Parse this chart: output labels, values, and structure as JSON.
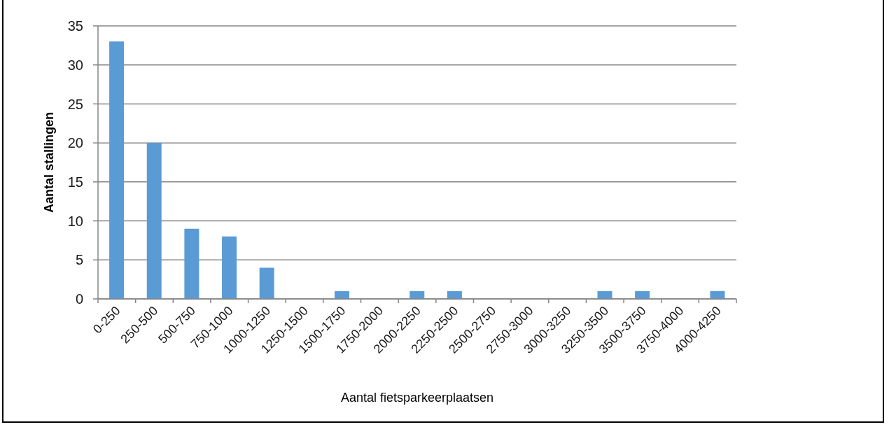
{
  "chart_data": {
    "type": "bar",
    "xlabel": "Aantal fietsparkeerplaatsen",
    "ylabel": "Aantal stallingen",
    "categories": [
      "0-250",
      "250-500",
      "500-750",
      "750-1000",
      "1000-1250",
      "1250-1500",
      "1500-1750",
      "1750-2000",
      "2000-2250",
      "2250-2500",
      "2500-2750",
      "2750-3000",
      "3000-3250",
      "3250-3500",
      "3500-3750",
      "3750-4000",
      "4000-4250"
    ],
    "values": [
      33,
      20,
      9,
      8,
      4,
      0,
      1,
      0,
      1,
      1,
      0,
      0,
      0,
      1,
      1,
      0,
      1
    ],
    "color": "#5b9bd5",
    "ylim": [
      0,
      35
    ],
    "yticks": [
      0,
      5,
      10,
      15,
      20,
      25,
      30,
      35
    ],
    "grid": "y"
  }
}
